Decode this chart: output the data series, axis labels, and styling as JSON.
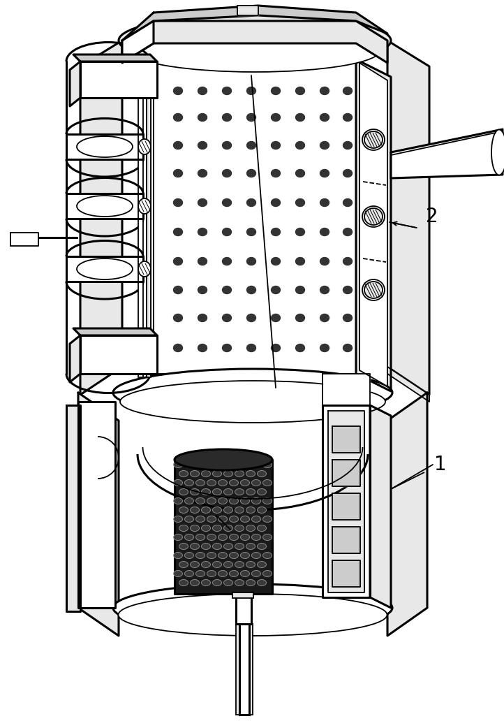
{
  "background_color": "#ffffff",
  "lc": "#000000",
  "lw": 1.3,
  "tlw": 2.2,
  "fig_width": 7.22,
  "fig_height": 10.42,
  "label_1": "1",
  "label_2": "2",
  "label_fontsize": 20,
  "dot_color": "#333333",
  "hatch_color": "#666666",
  "gray_light": "#e8e8e8",
  "gray_mid": "#cccccc",
  "gray_dark": "#555555",
  "cathode_fill": "#1a1a1a"
}
